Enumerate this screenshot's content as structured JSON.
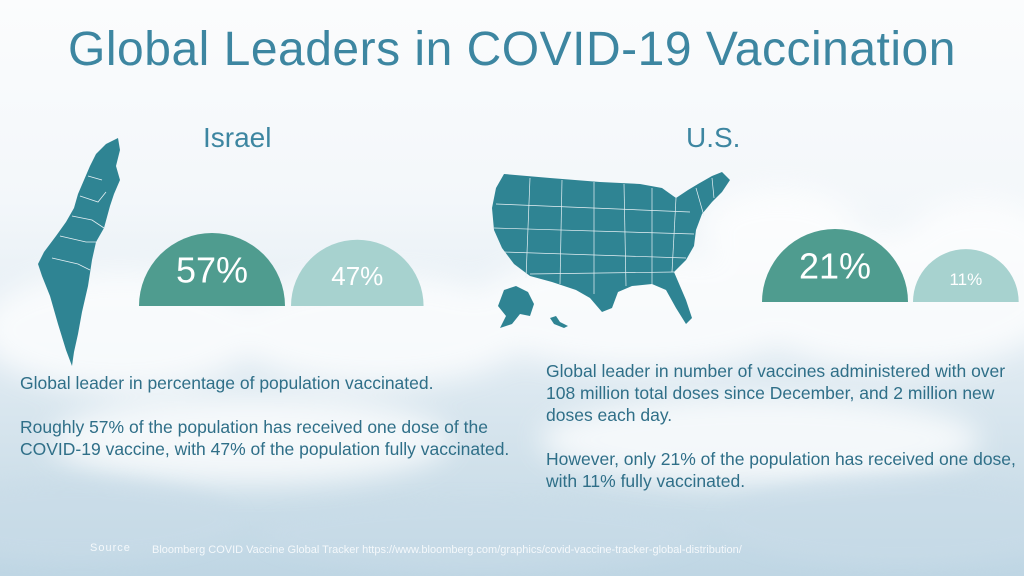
{
  "title": "Global Leaders in COVID-19 Vaccination",
  "colors": {
    "title": "#3d86a1",
    "primary_gauge": "#4f9c8f",
    "secondary_gauge": "#a7d2cf",
    "map": "#2f8493",
    "text": "#2f6f88"
  },
  "israel": {
    "name": "Israel",
    "map_icon": "israel-map",
    "description_1": "Global leader in percentage of population vaccinated.",
    "description_2": "Roughly 57% of the population has received one dose of the COVID-19 vaccine, with 47% of the population fully vaccinated."
  },
  "us": {
    "name": "U.S.",
    "map_icon": "usa-map",
    "description_1": "Global leader in number of vaccines administered with over 108 million total doses since December, and 2 million new doses each day.",
    "description_2": "However, only 21% of the population has received one dose, with 11% fully vaccinated."
  },
  "chart_data": [
    {
      "type": "pie",
      "title": "Israel",
      "series": [
        {
          "name": "one dose",
          "label": "57%",
          "value": 57
        },
        {
          "name": "fully vaccinated",
          "label": "47%",
          "value": 47
        }
      ]
    },
    {
      "type": "pie",
      "title": "U.S.",
      "series": [
        {
          "name": "one dose",
          "label": "21%",
          "value": 21
        },
        {
          "name": "fully vaccinated",
          "label": "11%",
          "value": 11
        }
      ]
    }
  ],
  "source": {
    "label": "Source",
    "text": "Bloomberg COVID Vaccine Global Tracker  https://www.bloomberg.com/graphics/covid-vaccine-tracker-global-distribution/"
  }
}
